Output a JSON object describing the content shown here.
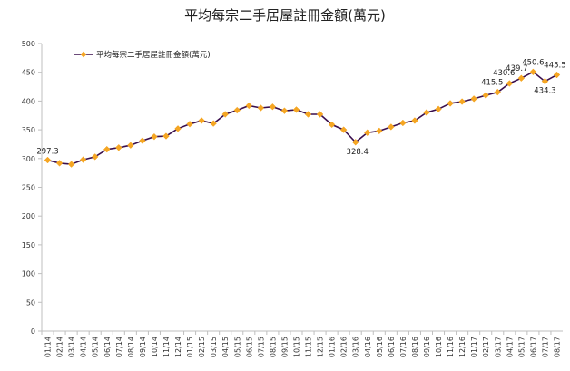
{
  "chart_data": {
    "type": "line",
    "title": "平均每宗二手居屋註冊金額(萬元)",
    "xlabel": "",
    "ylabel": "",
    "ylim": [
      0,
      500
    ],
    "yticks": [
      0,
      50,
      100,
      150,
      200,
      250,
      300,
      350,
      400,
      450,
      500
    ],
    "grid": false,
    "legend_position": "top-left",
    "line_color": "#3a0f4d",
    "marker_color": "#f5a623",
    "series": [
      {
        "name": "平均每宗二手居屋註冊金額(萬元)",
        "values": [
          297.3,
          292,
          290,
          298,
          303,
          316,
          319,
          323,
          331,
          338,
          339,
          352,
          360,
          366,
          361,
          377,
          384,
          392,
          388,
          390,
          383,
          385,
          377,
          377,
          359,
          350,
          328.4,
          345,
          348,
          355,
          362,
          366,
          380,
          386,
          396,
          399,
          404,
          410,
          415.5,
          430.6,
          439.7,
          450.6,
          434.3,
          445.5
        ]
      }
    ],
    "x": [
      "01/14",
      "02/14",
      "03/14",
      "04/14",
      "05/14",
      "06/14",
      "07/14",
      "08/14",
      "09/14",
      "10/14",
      "11/14",
      "12/14",
      "01/15",
      "02/15",
      "03/15",
      "04/15",
      "05/15",
      "06/15",
      "07/15",
      "08/15",
      "09/15",
      "10/15",
      "11/15",
      "12/15",
      "01/16",
      "02/16",
      "03/16",
      "04/16",
      "05/16",
      "06/16",
      "07/16",
      "08/16",
      "09/16",
      "10/16",
      "11/16",
      "12/16",
      "01/17",
      "02/17",
      "03/17",
      "04/17",
      "05/17",
      "06/17",
      "07/17",
      "08/17"
    ],
    "data_labels": [
      {
        "index": 0,
        "text": "297.3"
      },
      {
        "index": 26,
        "text": "328.4"
      },
      {
        "index": 38,
        "text": "415.5"
      },
      {
        "index": 39,
        "text": "430.6"
      },
      {
        "index": 40,
        "text": "439.7"
      },
      {
        "index": 41,
        "text": "450.6"
      },
      {
        "index": 42,
        "text": "434.3"
      },
      {
        "index": 43,
        "text": "445.5"
      }
    ]
  }
}
